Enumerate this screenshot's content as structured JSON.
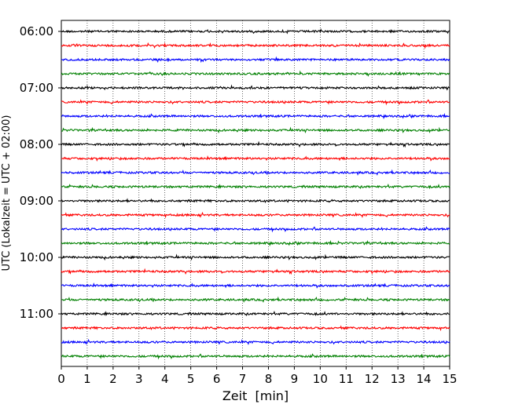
{
  "chart_data": {
    "type": "line",
    "title": "",
    "xlabel": "Zeit  [min]",
    "ylabel": "UTC (Lokalzeit = UTC + 02:00)",
    "xlim": [
      0,
      15
    ],
    "x_ticks": [
      "0",
      "1",
      "2",
      "3",
      "4",
      "5",
      "6",
      "7",
      "8",
      "9",
      "10",
      "11",
      "12",
      "13",
      "14",
      "15"
    ],
    "y_ticks": [
      "06:00",
      "07:00",
      "08:00",
      "09:00",
      "10:00",
      "11:00"
    ],
    "grid": "vertical dotted",
    "trace_colors": [
      "#000000",
      "#ff0000",
      "#0000ff",
      "#008000"
    ],
    "traces": [
      {
        "start": "06:00",
        "color": "#000000"
      },
      {
        "start": "06:15",
        "color": "#ff0000"
      },
      {
        "start": "06:30",
        "color": "#0000ff"
      },
      {
        "start": "06:45",
        "color": "#008000"
      },
      {
        "start": "07:00",
        "color": "#000000"
      },
      {
        "start": "07:15",
        "color": "#ff0000"
      },
      {
        "start": "07:30",
        "color": "#0000ff"
      },
      {
        "start": "07:45",
        "color": "#008000"
      },
      {
        "start": "08:00",
        "color": "#000000"
      },
      {
        "start": "08:15",
        "color": "#ff0000"
      },
      {
        "start": "08:30",
        "color": "#0000ff"
      },
      {
        "start": "08:45",
        "color": "#008000"
      },
      {
        "start": "09:00",
        "color": "#000000"
      },
      {
        "start": "09:15",
        "color": "#ff0000"
      },
      {
        "start": "09:30",
        "color": "#0000ff"
      },
      {
        "start": "09:45",
        "color": "#008000"
      },
      {
        "start": "10:00",
        "color": "#000000"
      },
      {
        "start": "10:15",
        "color": "#ff0000"
      },
      {
        "start": "10:30",
        "color": "#0000ff"
      },
      {
        "start": "10:45",
        "color": "#008000"
      },
      {
        "start": "11:00",
        "color": "#000000"
      },
      {
        "start": "11:15",
        "color": "#ff0000"
      },
      {
        "start": "11:30",
        "color": "#0000ff"
      },
      {
        "start": "11:45",
        "color": "#008000"
      }
    ]
  }
}
